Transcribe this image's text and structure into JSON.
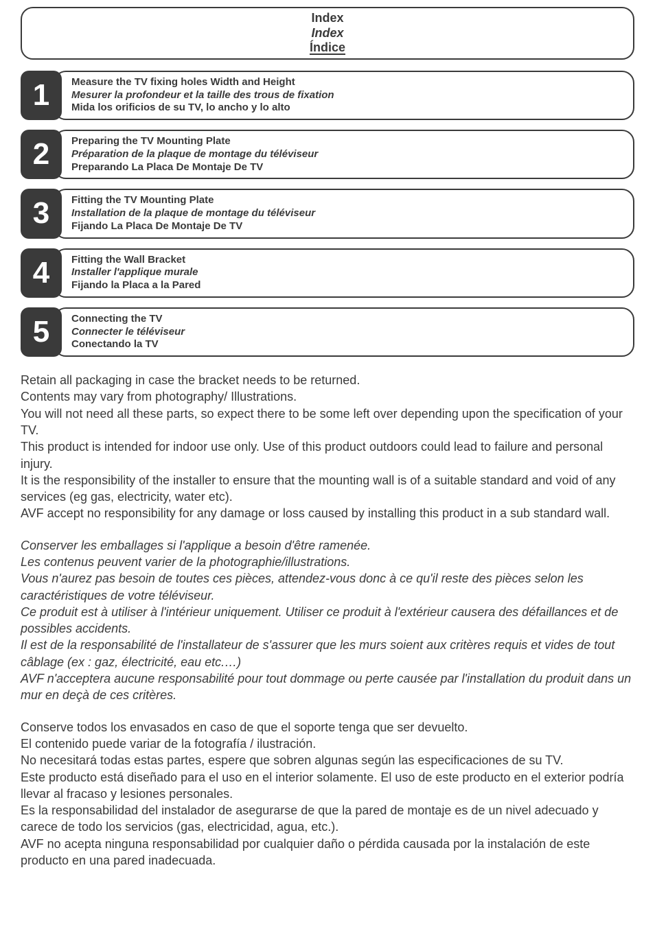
{
  "colors": {
    "text": "#3a3a3a",
    "badge_bg": "#3a3a3a",
    "badge_fg": "#ffffff",
    "page_bg": "#ffffff",
    "border": "#3a3a3a"
  },
  "typography": {
    "body_font": "Arial",
    "index_size_pt": 14,
    "step_badge_size_pt": 33,
    "step_text_size_pt": 11,
    "body_size_pt": 14
  },
  "index": {
    "en": "Index",
    "fr": "Index",
    "es": "Índice"
  },
  "steps": [
    {
      "num": "1",
      "en": "Measure the TV fixing holes Width and Height",
      "fr": "Mesurer la profondeur et la taille des trous de fixation",
      "es": "Mida los orificios de su TV, lo ancho y lo alto"
    },
    {
      "num": "2",
      "en": "Preparing the TV Mounting Plate",
      "fr": "Préparation de la plaque de montage du téléviseur",
      "es": "Preparando La Placa De Montaje De TV"
    },
    {
      "num": "3",
      "en": "Fitting the TV Mounting Plate",
      "fr": "Installation de la plaque de montage du téléviseur",
      "es": "Fijando La Placa De Montaje De TV"
    },
    {
      "num": "4",
      "en": "Fitting the Wall Bracket",
      "fr": "Installer l'applique murale",
      "es": "Fijando la Placa a la Pared"
    },
    {
      "num": "5",
      "en": "Connecting the TV",
      "fr": "Connecter le téléviseur",
      "es": "Conectando la TV"
    }
  ],
  "body": {
    "en": {
      "p1": "Retain all packaging in case the bracket needs to be returned.",
      "p2": "Contents may vary from photography/ Illustrations.",
      "p3": "You will not need all these parts, so expect there to be some left over depending upon the specification of your TV.",
      "p4": "This product is intended for indoor use only.  Use of this product outdoors could lead to failure and personal injury.",
      "p5": "It is the responsibility of the installer to ensure that the mounting wall is of a suitable standard and void of any services (eg gas, electricity, water etc).",
      "p6": "AVF accept no responsibility for any damage or loss caused by installing this product in a sub standard wall."
    },
    "fr": {
      "p1": "Conserver les emballages si l'applique a besoin d'être ramenée.",
      "p2": "Les contenus peuvent varier de la photographie/illustrations.",
      "p3": "Vous n'aurez pas besoin de toutes ces pièces, attendez-vous donc à ce qu'il reste des pièces selon les caractéristiques de votre téléviseur.",
      "p4": "Ce produit est à utiliser à l'intérieur uniquement. Utiliser ce produit à l'extérieur causera des défaillances et de possibles accidents.",
      "p5": "Il est de la responsabilité de l'installateur de s'assurer que les murs soient aux critères requis et vides de tout câblage (ex : gaz, électricité, eau etc.…)",
      "p6": "AVF n'acceptera aucune responsabilité pour tout dommage ou perte causée par l'installation du produit dans un mur en deçà de ces critères."
    },
    "es": {
      "p1": "Conserve todos los envasados en caso de que el soporte tenga que ser devuelto.",
      "p2": "El contenido puede variar de la fotografía / ilustración.",
      "p3": "No necesitará todas estas partes, espere que sobren algunas según las especificaciones de su TV.",
      "p4": "Este producto está diseñado para el uso en el interior solamente.  El uso de este producto en el exterior podría llevar al fracaso y lesiones personales.",
      "p5": "Es la responsabilidad del instalador de asegurarse de que la pared de montaje es de un nivel adecuado y carece de todo los servicios (gas, electricidad, agua, etc.).",
      "p6": "AVF no acepta ninguna responsabilidad por cualquier daño o pérdida causada por la instalación de este producto en una pared inadecuada."
    }
  }
}
